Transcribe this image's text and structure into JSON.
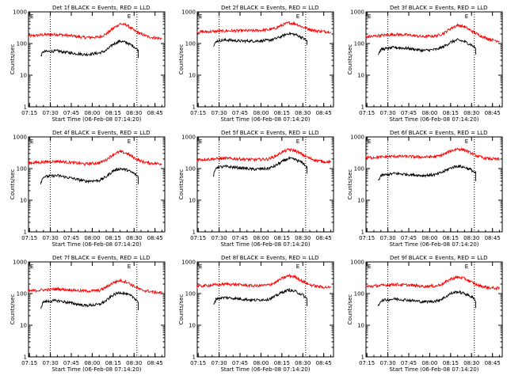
{
  "figure": {
    "xlabel": "Start Time (06-Feb-08 07:14:20)",
    "ylabel": "Counts/sec",
    "x_tick_labels": [
      "07:15",
      "07:30",
      "07:45",
      "08:00",
      "08:15",
      "08:30",
      "08:45"
    ],
    "y_tick_labels": [
      "1",
      "10",
      "100",
      "1000"
    ],
    "marker_label": "E",
    "colors": {
      "events": "#000000",
      "lld": "#ff0000",
      "axes": "#000000",
      "background": "#ffffff"
    }
  },
  "chart_data": [
    {
      "type": "line",
      "title": "Det 1f BLACK = Events, RED = LLD",
      "xlim": [
        "07:14:20",
        "08:52:00"
      ],
      "ylim": [
        1,
        1000
      ],
      "y_scale": "log",
      "x_ticks": [
        "07:15",
        "07:30",
        "07:45",
        "08:00",
        "08:15",
        "08:30",
        "08:45"
      ],
      "y_ticks": [
        1,
        10,
        100,
        1000
      ],
      "markers": [
        "07:30",
        "08:32"
      ],
      "series": [
        {
          "name": "LLD",
          "color": "#ff0000",
          "x": [
            "07:14",
            "07:25",
            "07:35",
            "07:45",
            "07:55",
            "08:05",
            "08:10",
            "08:15",
            "08:20",
            "08:25",
            "08:30",
            "08:35",
            "08:40",
            "08:45",
            "08:50"
          ],
          "y": [
            170,
            190,
            195,
            175,
            155,
            160,
            200,
            300,
            420,
            380,
            260,
            200,
            165,
            150,
            145
          ]
        },
        {
          "name": "Events",
          "color": "#000000",
          "x": [
            "07:23",
            "07:25",
            "07:35",
            "07:45",
            "07:55",
            "08:05",
            "08:10",
            "08:15",
            "08:20",
            "08:25",
            "08:30",
            "08:33",
            "08:33"
          ],
          "y": [
            40,
            55,
            58,
            50,
            45,
            50,
            60,
            95,
            120,
            105,
            80,
            60,
            35
          ]
        }
      ]
    },
    {
      "type": "line",
      "title": "Det 2f BLACK = Events, RED = LLD",
      "xlim": [
        "07:14:20",
        "08:52:00"
      ],
      "ylim": [
        1,
        1000
      ],
      "y_scale": "log",
      "x_ticks": [
        "07:15",
        "07:30",
        "07:45",
        "08:00",
        "08:15",
        "08:30",
        "08:45"
      ],
      "y_ticks": [
        1,
        10,
        100,
        1000
      ],
      "markers": [
        "07:30",
        "08:32"
      ],
      "series": [
        {
          "name": "LLD",
          "color": "#ff0000",
          "x": [
            "07:14",
            "07:25",
            "07:35",
            "07:45",
            "07:55",
            "08:05",
            "08:10",
            "08:15",
            "08:20",
            "08:25",
            "08:30",
            "08:35",
            "08:40",
            "08:45",
            "08:50"
          ],
          "y": [
            230,
            240,
            250,
            255,
            255,
            270,
            300,
            380,
            450,
            420,
            330,
            280,
            250,
            240,
            235
          ]
        },
        {
          "name": "Events",
          "color": "#000000",
          "x": [
            "07:26",
            "07:28",
            "07:35",
            "07:45",
            "07:55",
            "08:05",
            "08:10",
            "08:15",
            "08:20",
            "08:25",
            "08:30",
            "08:33",
            "08:33"
          ],
          "y": [
            80,
            120,
            130,
            120,
            120,
            125,
            140,
            170,
            210,
            190,
            150,
            120,
            90
          ]
        }
      ]
    },
    {
      "type": "line",
      "title": "Det 3f BLACK = Events, RED = LLD",
      "xlim": [
        "07:14:20",
        "08:52:00"
      ],
      "ylim": [
        1,
        1000
      ],
      "y_scale": "log",
      "x_ticks": [
        "07:15",
        "07:30",
        "07:45",
        "08:00",
        "08:15",
        "08:30",
        "08:45"
      ],
      "y_ticks": [
        1,
        10,
        100,
        1000
      ],
      "markers": [
        "07:30",
        "08:32"
      ],
      "series": [
        {
          "name": "LLD",
          "color": "#ff0000",
          "x": [
            "07:14",
            "07:25",
            "07:35",
            "07:45",
            "07:55",
            "08:05",
            "08:10",
            "08:15",
            "08:20",
            "08:25",
            "08:30",
            "08:35",
            "08:40",
            "08:45",
            "08:50"
          ],
          "y": [
            160,
            180,
            195,
            185,
            165,
            175,
            210,
            300,
            380,
            340,
            250,
            190,
            150,
            130,
            120
          ]
        },
        {
          "name": "Events",
          "color": "#000000",
          "x": [
            "07:23",
            "07:25",
            "07:35",
            "07:45",
            "07:55",
            "08:05",
            "08:10",
            "08:15",
            "08:20",
            "08:25",
            "08:30",
            "08:33",
            "08:33"
          ],
          "y": [
            45,
            65,
            75,
            70,
            60,
            65,
            80,
            110,
            130,
            115,
            90,
            70,
            45
          ]
        }
      ]
    },
    {
      "type": "line",
      "title": "Det 4f BLACK = Events, RED = LLD",
      "xlim": [
        "07:14:20",
        "08:52:00"
      ],
      "ylim": [
        1,
        1000
      ],
      "y_scale": "log",
      "x_ticks": [
        "07:15",
        "07:30",
        "07:45",
        "08:00",
        "08:15",
        "08:30",
        "08:45"
      ],
      "y_ticks": [
        1,
        10,
        100,
        1000
      ],
      "markers": [
        "07:30",
        "08:32"
      ],
      "series": [
        {
          "name": "LLD",
          "color": "#ff0000",
          "x": [
            "07:14",
            "07:25",
            "07:35",
            "07:45",
            "07:55",
            "08:05",
            "08:10",
            "08:15",
            "08:20",
            "08:25",
            "08:30",
            "08:35",
            "08:40",
            "08:45",
            "08:50"
          ],
          "y": [
            150,
            160,
            170,
            155,
            140,
            150,
            190,
            280,
            340,
            300,
            220,
            170,
            150,
            145,
            140
          ]
        },
        {
          "name": "Events",
          "color": "#000000",
          "x": [
            "07:23",
            "07:25",
            "07:35",
            "07:45",
            "07:55",
            "08:05",
            "08:10",
            "08:15",
            "08:20",
            "08:25",
            "08:30",
            "08:33",
            "08:33"
          ],
          "y": [
            35,
            55,
            60,
            50,
            40,
            42,
            55,
            85,
            100,
            90,
            70,
            55,
            32
          ]
        }
      ]
    },
    {
      "type": "line",
      "title": "Det 5f BLACK = Events, RED = LLD",
      "xlim": [
        "07:14:20",
        "08:52:00"
      ],
      "ylim": [
        1,
        1000
      ],
      "y_scale": "log",
      "x_ticks": [
        "07:15",
        "07:30",
        "07:45",
        "08:00",
        "08:15",
        "08:30",
        "08:45"
      ],
      "y_ticks": [
        1,
        10,
        100,
        1000
      ],
      "markers": [
        "07:30",
        "08:32"
      ],
      "series": [
        {
          "name": "LLD",
          "color": "#ff0000",
          "x": [
            "07:14",
            "07:25",
            "07:35",
            "07:45",
            "07:55",
            "08:05",
            "08:10",
            "08:15",
            "08:20",
            "08:25",
            "08:30",
            "08:35",
            "08:40",
            "08:45",
            "08:50"
          ],
          "y": [
            190,
            200,
            210,
            200,
            190,
            200,
            240,
            330,
            400,
            360,
            270,
            210,
            180,
            165,
            160
          ]
        },
        {
          "name": "Events",
          "color": "#000000",
          "x": [
            "07:26",
            "07:28",
            "07:35",
            "07:45",
            "07:55",
            "08:05",
            "08:10",
            "08:15",
            "08:20",
            "08:25",
            "08:30",
            "08:33",
            "08:33"
          ],
          "y": [
            60,
            110,
            115,
            105,
            95,
            100,
            120,
            165,
            210,
            190,
            150,
            110,
            70
          ]
        }
      ]
    },
    {
      "type": "line",
      "title": "Det 6f BLACK = Events, RED = LLD",
      "xlim": [
        "07:14:20",
        "08:52:00"
      ],
      "ylim": [
        1,
        1000
      ],
      "y_scale": "log",
      "x_ticks": [
        "07:15",
        "07:30",
        "07:45",
        "08:00",
        "08:15",
        "08:30",
        "08:45"
      ],
      "y_ticks": [
        1,
        10,
        100,
        1000
      ],
      "markers": [
        "07:30",
        "08:32"
      ],
      "series": [
        {
          "name": "LLD",
          "color": "#ff0000",
          "x": [
            "07:14",
            "07:25",
            "07:35",
            "07:45",
            "07:55",
            "08:05",
            "08:10",
            "08:15",
            "08:20",
            "08:25",
            "08:30",
            "08:35",
            "08:40",
            "08:45",
            "08:50"
          ],
          "y": [
            220,
            230,
            245,
            240,
            230,
            240,
            280,
            360,
            420,
            390,
            300,
            240,
            210,
            200,
            195
          ]
        },
        {
          "name": "Events",
          "color": "#000000",
          "x": [
            "07:23",
            "07:25",
            "07:35",
            "07:45",
            "07:55",
            "08:05",
            "08:10",
            "08:15",
            "08:20",
            "08:25",
            "08:30",
            "08:33",
            "08:33"
          ],
          "y": [
            40,
            60,
            70,
            65,
            60,
            65,
            80,
            105,
            120,
            110,
            90,
            70,
            40
          ]
        }
      ]
    },
    {
      "type": "line",
      "title": "Det 7f BLACK = Events, RED = LLD",
      "xlim": [
        "07:14:20",
        "08:52:00"
      ],
      "ylim": [
        1,
        1000
      ],
      "y_scale": "log",
      "x_ticks": [
        "07:15",
        "07:30",
        "07:45",
        "08:00",
        "08:15",
        "08:30",
        "08:45"
      ],
      "y_ticks": [
        1,
        10,
        100,
        1000
      ],
      "markers": [
        "07:30",
        "08:32"
      ],
      "series": [
        {
          "name": "LLD",
          "color": "#ff0000",
          "x": [
            "07:14",
            "07:25",
            "07:35",
            "07:45",
            "07:55",
            "08:05",
            "08:10",
            "08:15",
            "08:20",
            "08:25",
            "08:30",
            "08:35",
            "08:40",
            "08:45",
            "08:50"
          ],
          "y": [
            120,
            130,
            140,
            130,
            120,
            125,
            160,
            220,
            260,
            230,
            170,
            130,
            120,
            110,
            105
          ]
        },
        {
          "name": "Events",
          "color": "#000000",
          "x": [
            "07:23",
            "07:25",
            "07:35",
            "07:45",
            "07:55",
            "08:05",
            "08:10",
            "08:15",
            "08:20",
            "08:25",
            "08:30",
            "08:33",
            "08:33"
          ],
          "y": [
            35,
            55,
            60,
            50,
            42,
            45,
            60,
            90,
            110,
            95,
            75,
            55,
            30
          ]
        }
      ]
    },
    {
      "type": "line",
      "title": "Det 8f BLACK = Events, RED = LLD",
      "xlim": [
        "07:14:20",
        "08:52:00"
      ],
      "ylim": [
        1,
        1000
      ],
      "y_scale": "log",
      "x_ticks": [
        "07:15",
        "07:30",
        "07:45",
        "08:00",
        "08:15",
        "08:30",
        "08:45"
      ],
      "y_ticks": [
        1,
        10,
        100,
        1000
      ],
      "markers": [
        "07:30",
        "08:32"
      ],
      "series": [
        {
          "name": "LLD",
          "color": "#ff0000",
          "x": [
            "07:14",
            "07:25",
            "07:35",
            "07:45",
            "07:55",
            "08:05",
            "08:10",
            "08:15",
            "08:20",
            "08:25",
            "08:30",
            "08:35",
            "08:40",
            "08:45",
            "08:50"
          ],
          "y": [
            170,
            185,
            200,
            190,
            175,
            185,
            220,
            300,
            370,
            330,
            240,
            190,
            170,
            160,
            155
          ]
        },
        {
          "name": "Events",
          "color": "#000000",
          "x": [
            "07:26",
            "07:28",
            "07:35",
            "07:45",
            "07:55",
            "08:05",
            "08:10",
            "08:15",
            "08:20",
            "08:25",
            "08:30",
            "08:33",
            "08:33"
          ],
          "y": [
            45,
            70,
            75,
            68,
            62,
            66,
            80,
            110,
            130,
            115,
            90,
            68,
            40
          ]
        }
      ]
    },
    {
      "type": "line",
      "title": "Det 9f BLACK = Events, RED = LLD",
      "xlim": [
        "07:14:20",
        "08:52:00"
      ],
      "ylim": [
        1,
        1000
      ],
      "y_scale": "log",
      "x_ticks": [
        "07:15",
        "07:30",
        "07:45",
        "08:00",
        "08:15",
        "08:30",
        "08:45"
      ],
      "y_ticks": [
        1,
        10,
        100,
        1000
      ],
      "markers": [
        "07:30",
        "08:32"
      ],
      "series": [
        {
          "name": "LLD",
          "color": "#ff0000",
          "x": [
            "07:14",
            "07:25",
            "07:35",
            "07:45",
            "07:55",
            "08:05",
            "08:10",
            "08:15",
            "08:20",
            "08:25",
            "08:30",
            "08:35",
            "08:40",
            "08:45",
            "08:50"
          ],
          "y": [
            165,
            180,
            195,
            185,
            170,
            175,
            210,
            290,
            330,
            300,
            230,
            180,
            160,
            150,
            145
          ]
        },
        {
          "name": "Events",
          "color": "#000000",
          "x": [
            "07:23",
            "07:25",
            "07:35",
            "07:45",
            "07:55",
            "08:05",
            "08:10",
            "08:15",
            "08:20",
            "08:25",
            "08:30",
            "08:33",
            "08:33"
          ],
          "y": [
            40,
            60,
            68,
            62,
            55,
            58,
            72,
            100,
            115,
            100,
            80,
            60,
            35
          ]
        }
      ]
    }
  ]
}
